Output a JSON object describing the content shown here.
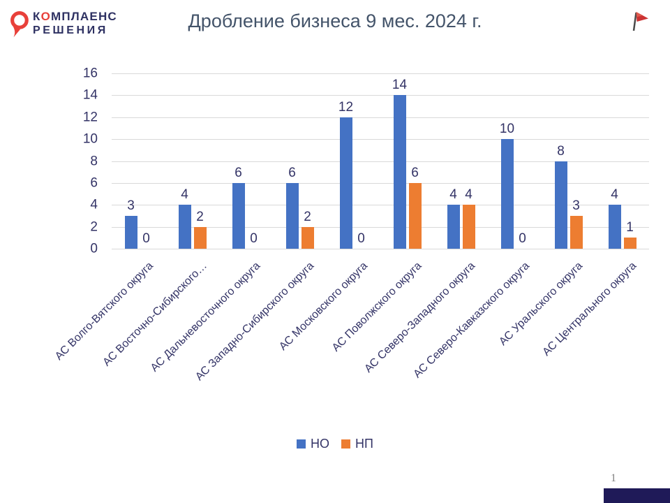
{
  "header": {
    "logo": {
      "line1_pre": "К",
      "line1_o": "О",
      "line1_post": "МПЛАЕНС",
      "line2": "РЕШЕНИЯ"
    },
    "title": "Дробление бизнеса 9 мес. 2024 г."
  },
  "footer": {
    "page_number": "1"
  },
  "colors": {
    "series_ho": "#4472C4",
    "series_np": "#ED7D31",
    "axis_text": "#333366",
    "title_text": "#44546A",
    "gridline": "#D9D9D9",
    "logo_navy": "#2E3162",
    "logo_red": "#E8403A",
    "footer_bar": "#1F1A58",
    "page_number_gray": "#808080",
    "flag_red": "#CC3333"
  },
  "chart_data": {
    "type": "bar",
    "title": "Дробление бизнеса 9 мес. 2024 г.",
    "categories": [
      "АС Волго-Вятского округа",
      "АС Восточно-Сибирского…",
      "АС Дальневосточного округа",
      "АС Западно-Сибирского округа",
      "АС Московского округа",
      "АС Поволжского округа",
      "АС Северо-Западного округа",
      "АС Северо-Кавказского округа",
      "АС Уральского округа",
      "АС Центрального округа"
    ],
    "series": [
      {
        "name": "НО",
        "color": "#4472C4",
        "values": [
          3,
          4,
          6,
          6,
          12,
          14,
          4,
          10,
          8,
          4
        ]
      },
      {
        "name": "НП",
        "color": "#ED7D31",
        "values": [
          0,
          2,
          0,
          2,
          0,
          6,
          4,
          0,
          3,
          1
        ]
      }
    ],
    "xlabel": "",
    "ylabel": "",
    "ylim": [
      0,
      16
    ],
    "ytick_step": 2,
    "grid": true,
    "data_labels": true,
    "legend_position": "bottom"
  }
}
